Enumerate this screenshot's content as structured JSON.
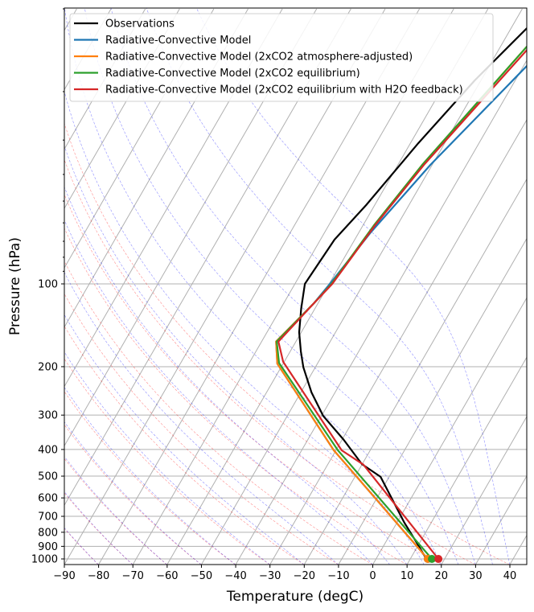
{
  "chart_data": {
    "type": "line",
    "plot_kind": "skew-T log-p",
    "xlabel": "Temperature (degC)",
    "ylabel": "Pressure (hPa)",
    "xlim": [
      -90,
      45
    ],
    "ylim": [
      1050,
      10
    ],
    "yscale": "log",
    "skew_rotation_deg": 30,
    "xticks": [
      -90,
      -80,
      -70,
      -60,
      -50,
      -40,
      -30,
      -20,
      -10,
      0,
      10,
      20,
      30,
      40
    ],
    "yticks": [
      100,
      200,
      300,
      400,
      500,
      600,
      700,
      800,
      900,
      1000
    ],
    "grid": true,
    "legend_position": "top-left",
    "background_lines": {
      "isotherms": "#b0b0b0",
      "dry_adiabats": "#ff0000",
      "moist_adiabats": "#0000ff"
    },
    "series": [
      {
        "name": "Observations",
        "color": "#000000",
        "surface_marker": false,
        "points": [
          [
            14.7,
            1000
          ],
          [
            8.6,
            862
          ],
          [
            2.2,
            739
          ],
          [
            -12.5,
            503
          ],
          [
            -20.1,
            452
          ],
          [
            -29.5,
            369
          ],
          [
            -39.5,
            302
          ],
          [
            -46.9,
            248
          ],
          [
            -53.5,
            201
          ],
          [
            -56.9,
            176
          ],
          [
            -60.6,
            150
          ],
          [
            -64.0,
            123
          ],
          [
            -67.1,
            100
          ],
          [
            -65.9,
            69
          ],
          [
            -62.5,
            51.7
          ],
          [
            -57.7,
            30.8
          ],
          [
            -51.8,
            18.2
          ],
          [
            -45.4,
            11.75
          ],
          [
            -43.0,
            10
          ]
        ]
      },
      {
        "name": "Radiative-Convective Model",
        "color": "#1f77b4",
        "surface_marker": true,
        "points": [
          [
            15.1,
            1000
          ],
          [
            -24.6,
            454
          ],
          [
            -30.6,
            403
          ],
          [
            -61.7,
            195
          ],
          [
            -65.8,
            162
          ],
          [
            -61.2,
            117.5
          ],
          [
            -59.8,
            100
          ],
          [
            -56.6,
            65.4
          ],
          [
            -50.5,
            36.9
          ],
          [
            -39.0,
            16.1
          ],
          [
            -32.3,
            10
          ]
        ]
      },
      {
        "name": "Radiative-Convective Model (2xCO2 atmosphere-adjusted)",
        "color": "#ff7f0e",
        "surface_marker": true,
        "points": [
          [
            15.1,
            1000
          ],
          [
            -24.6,
            454
          ],
          [
            -30.6,
            403
          ],
          [
            -61.7,
            195
          ],
          [
            -65.8,
            162
          ],
          [
            -61.2,
            117.5
          ],
          [
            -59.3,
            100
          ],
          [
            -56.8,
            61.2
          ],
          [
            -52.9,
            36.9
          ],
          [
            -42.3,
            13.7
          ],
          [
            -38.9,
            10
          ]
        ]
      },
      {
        "name": "Radiative-Convective Model (2xCO2 equilibrium)",
        "color": "#2ca02c",
        "surface_marker": true,
        "points": [
          [
            16.3,
            1000
          ],
          [
            -23.4,
            454
          ],
          [
            -29.4,
            403
          ],
          [
            -61.3,
            194
          ],
          [
            -65.6,
            162
          ],
          [
            -61.2,
            117.5
          ],
          [
            -59.3,
            100
          ],
          [
            -56.8,
            61.2
          ],
          [
            -52.9,
            36.9
          ],
          [
            -42.3,
            13.7
          ],
          [
            -38.9,
            10
          ]
        ]
      },
      {
        "name": "Radiative-Convective Model (2xCO2 equilibrium with H2O feedback)",
        "color": "#d62728",
        "surface_marker": true,
        "points": [
          [
            18.2,
            1000
          ],
          [
            -19.6,
            454
          ],
          [
            -28.3,
            403
          ],
          [
            -60.3,
            192
          ],
          [
            -65.1,
            162
          ],
          [
            -61.2,
            117.5
          ],
          [
            -59.1,
            100
          ],
          [
            -56.5,
            61.2
          ],
          [
            -52.4,
            36.9
          ],
          [
            -41.7,
            14.1
          ],
          [
            -38.3,
            10
          ]
        ]
      }
    ]
  }
}
